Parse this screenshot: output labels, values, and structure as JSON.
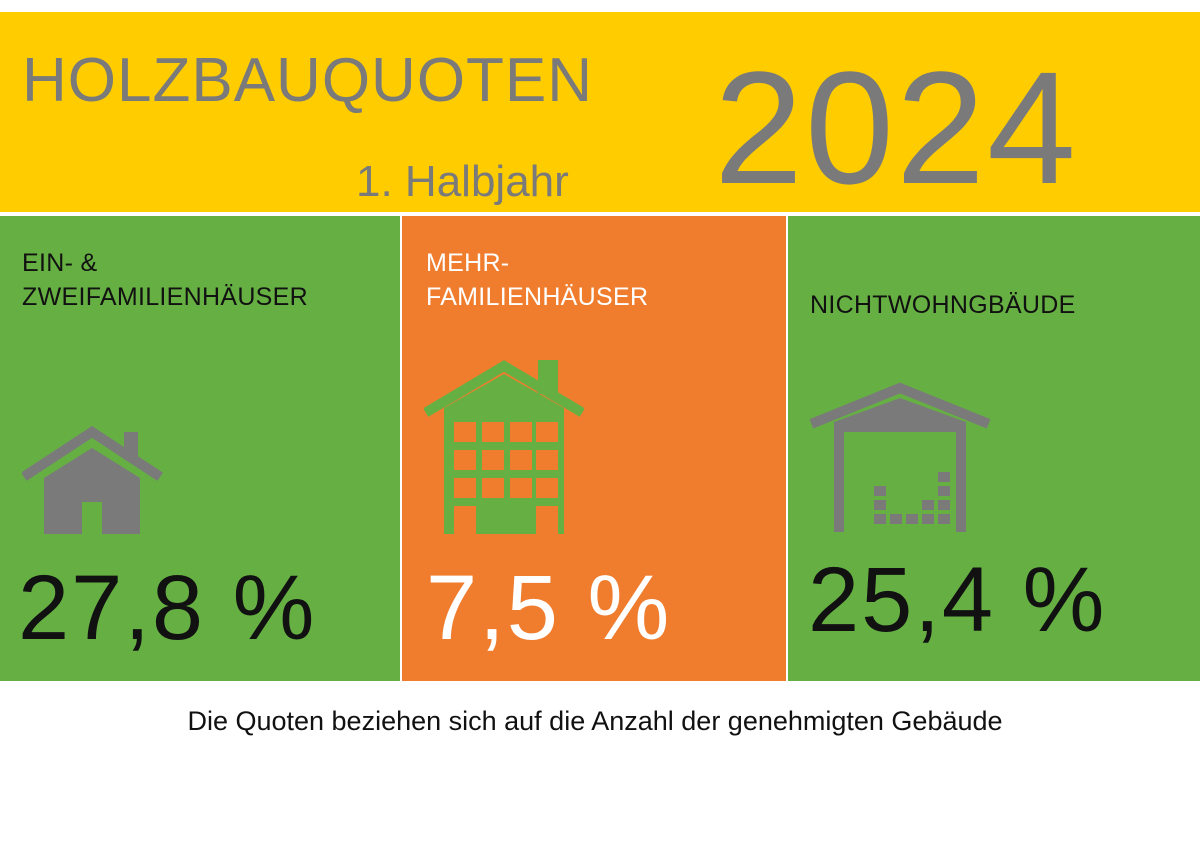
{
  "header": {
    "title": "HOLZBAUQUOTEN",
    "subtitle": "1. Halbjahr",
    "year": "2024",
    "background_color": "#ffcc00",
    "text_color": "#7a7a7a"
  },
  "panels": [
    {
      "label_line1": "EIN- &",
      "label_line2": "ZWEIFAMILIENHÄUSER",
      "value": "27,8 %",
      "icon": "single-family-house-icon",
      "background_color": "#66b043"
    },
    {
      "label_line1": "MEHR-",
      "label_line2": "FAMILIENHÄUSER",
      "value": "7,5 %",
      "icon": "multi-family-house-icon",
      "background_color": "#f07d2e"
    },
    {
      "label_line1": "NICHTWOHNGBÄUDE",
      "value": "25,4 %",
      "icon": "warehouse-icon",
      "background_color": "#66b043"
    }
  ],
  "footnote": "Die Quoten beziehen sich auf die Anzahl der genehmigten Gebäude"
}
